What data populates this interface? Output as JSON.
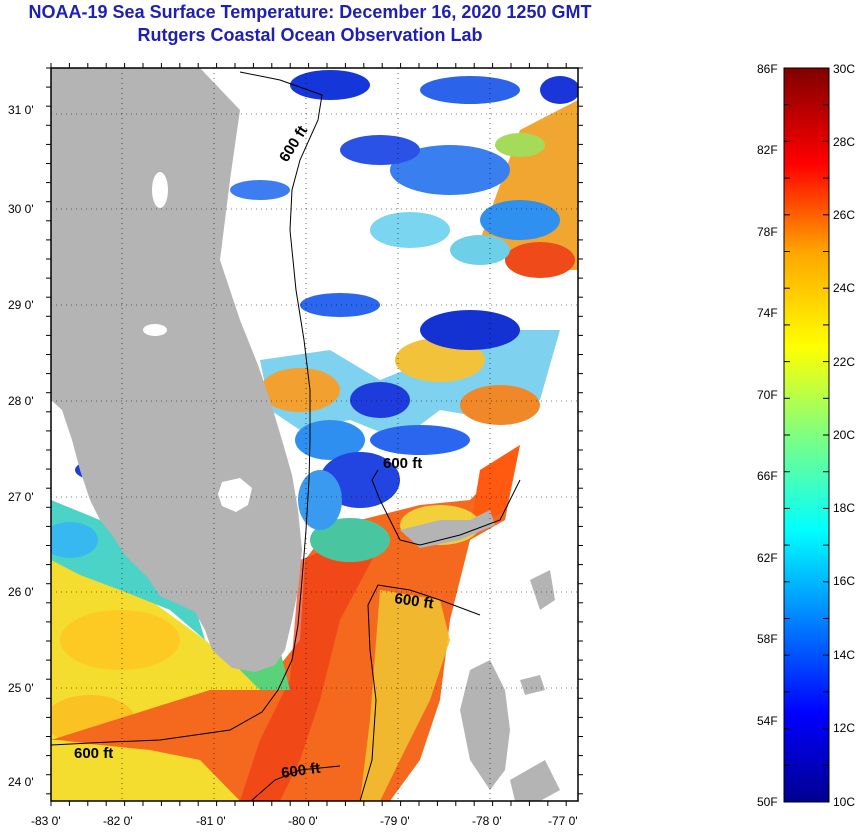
{
  "header": {
    "title": "NOAA-19 Sea Surface Temperature:  December 16, 2020 1250 GMT",
    "subtitle": "Rutgers Coastal Ocean Observation Lab"
  },
  "map": {
    "lon_labels": [
      "-83 0'",
      "-82 0'",
      "-81 0'",
      "-80 0'",
      "-79 0'",
      "-78 0'",
      "-77 0'"
    ],
    "lat_labels": [
      "31 0'",
      "30 0'",
      "29 0'",
      "28 0'",
      "27 0'",
      "26 0'",
      "25 0'",
      "24 0'"
    ],
    "contour_labels": [
      "600 ft",
      "600 ft",
      "600 ft",
      "600 ft",
      "600 ft"
    ],
    "colors": {
      "land": "#b4b4b4",
      "frame": "#000000"
    }
  },
  "colorbar": {
    "fahrenheit_labels": [
      "86F",
      "82F",
      "78F",
      "74F",
      "70F",
      "66F",
      "62F",
      "58F",
      "54F",
      "50F"
    ],
    "celsius_labels": [
      "30C",
      "28C",
      "26C",
      "24C",
      "22C",
      "20C",
      "18C",
      "16C",
      "14C",
      "12C",
      "10C"
    ],
    "min_c": 10,
    "max_c": 30
  }
}
